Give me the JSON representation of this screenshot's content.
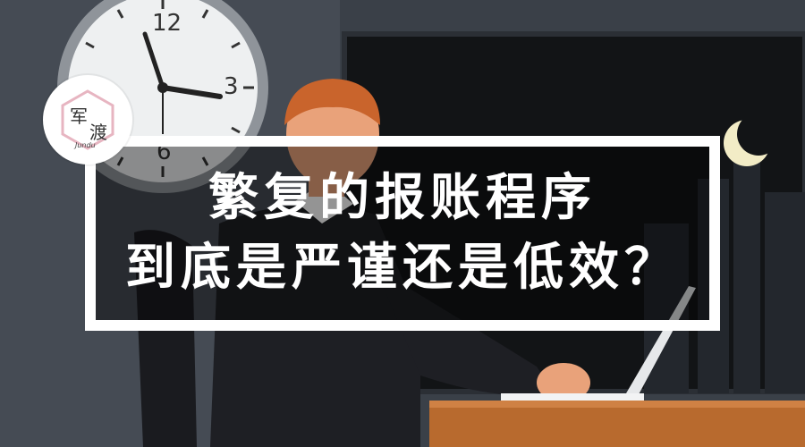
{
  "image": {
    "headline_line1": "繁复的报账程序",
    "headline_line2": "到底是严谨还是低效？"
  },
  "logo": {
    "char1": "军",
    "char2": "渡",
    "brand": "Jundu"
  },
  "clock": {
    "numerals": [
      "12",
      "3",
      "6"
    ]
  },
  "colors": {
    "wall": "#3a4048",
    "window": "#121416",
    "frame": "#ffffff",
    "hair": "#c9642c",
    "suit": "#1e1f24",
    "skin": "#e9a27a",
    "desk": "#b86a2e",
    "logo_pink": "#e7b5c1"
  }
}
